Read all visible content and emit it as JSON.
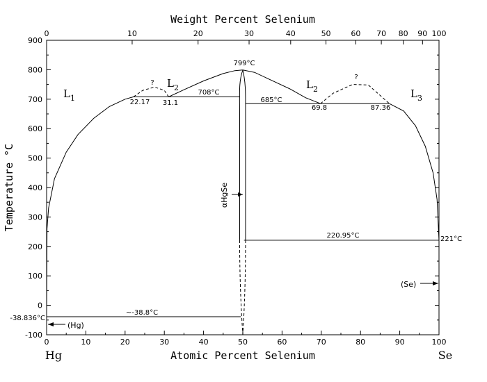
{
  "chart_data": {
    "type": "phase-diagram",
    "title": "",
    "xlabel_bottom": "Atomic Percent Selenium",
    "xlabel_top": "Weight Percent Selenium",
    "ylabel": "Temperature °C",
    "xlim": [
      0,
      100
    ],
    "ylim": [
      -100,
      900
    ],
    "grid": false,
    "x_ticks_bottom": [
      "0",
      "10",
      "20",
      "30",
      "40",
      "50",
      "60",
      "70",
      "80",
      "90",
      "100"
    ],
    "x_ticks_top": [
      "0",
      "10",
      "20",
      "30",
      "40",
      "50",
      "60",
      "70",
      "80",
      "90",
      "100"
    ],
    "top_tick_atomic": [
      0,
      21.8,
      38.6,
      51.6,
      62.2,
      71.2,
      78.8,
      85.3,
      90.9,
      95.8,
      100
    ],
    "y_ticks": [
      "900",
      "800",
      "700",
      "600",
      "500",
      "400",
      "300",
      "200",
      "100",
      "0",
      "-100"
    ],
    "y_tick_values": [
      900,
      800,
      700,
      600,
      500,
      400,
      300,
      200,
      100,
      0,
      -100
    ],
    "left_element": "Hg",
    "right_element": "Se",
    "regions": {
      "L1": {
        "main": "L",
        "sub": "1"
      },
      "L2_left": {
        "main": "L",
        "sub": "2"
      },
      "L2_right": {
        "main": "L",
        "sub": "2"
      },
      "L3": {
        "main": "L",
        "sub": "3"
      }
    },
    "compound_label": "αHgSe",
    "solid_labels": {
      "hg": "(Hg)",
      "se": "(Se)"
    },
    "question_marks": [
      "?",
      "?"
    ],
    "temperature_labels": {
      "congruent_melting": "799°C",
      "monotectic_left": "708°C",
      "monotectic_right": "685°C",
      "eutectic_se": "220.95°C",
      "se_melting": "221°C",
      "eutectic_hg": "~-38.8°C",
      "hg_melting": "-38.836°C"
    },
    "composition_labels": [
      "22.17",
      "31.1",
      "69.8",
      "87.36"
    ],
    "invariant_lines": [
      {
        "t": 708,
        "x_from": 22.17,
        "x_to": 49.3
      },
      {
        "t": 685,
        "x_from": 50.7,
        "x_to": 87.36
      },
      {
        "t": 220.95,
        "x_from": 50.3,
        "x_to": 100
      },
      {
        "t": -38.8,
        "x_from": 0,
        "x_to": 49.5
      }
    ],
    "liquidus_left": [
      [
        0,
        -38.836
      ],
      [
        0.1,
        260
      ],
      [
        0.5,
        330
      ],
      [
        2,
        430
      ],
      [
        5,
        520
      ],
      [
        8,
        580
      ],
      [
        12,
        635
      ],
      [
        16,
        675
      ],
      [
        20,
        700
      ],
      [
        22.17,
        708
      ]
    ],
    "liquidus_mid_left": [
      [
        31.1,
        708
      ],
      [
        35,
        732
      ],
      [
        40,
        762
      ],
      [
        45,
        787
      ],
      [
        48,
        797
      ],
      [
        50,
        799
      ]
    ],
    "liquidus_mid_right": [
      [
        50,
        799
      ],
      [
        53,
        791
      ],
      [
        57,
        766
      ],
      [
        62,
        735
      ],
      [
        66,
        705
      ],
      [
        69.8,
        685
      ]
    ],
    "liquidus_right": [
      [
        87.36,
        685
      ],
      [
        91,
        660
      ],
      [
        94,
        610
      ],
      [
        96.5,
        540
      ],
      [
        98.5,
        450
      ],
      [
        99.5,
        360
      ],
      [
        100,
        221
      ]
    ],
    "miscibility_gap_left": [
      [
        22.17,
        708
      ],
      [
        24.5,
        730
      ],
      [
        27.5,
        741
      ],
      [
        30,
        730
      ],
      [
        31.1,
        708
      ]
    ],
    "miscibility_gap_right": [
      [
        69.8,
        685
      ],
      [
        73,
        720
      ],
      [
        78,
        750
      ],
      [
        82,
        748
      ],
      [
        87.36,
        685
      ]
    ],
    "compound_field": {
      "x_center": 50,
      "x_left": 49.2,
      "x_right": 50.7,
      "t_top": 799,
      "t_solid_bottom": 220.95,
      "t_bottom": -100
    }
  }
}
